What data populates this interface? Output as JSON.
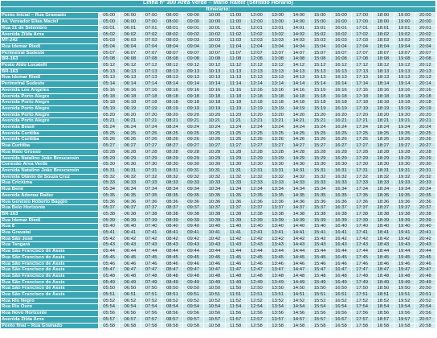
{
  "title": "Linha nº 300 Área Verde – Mário Raiter (Sentido Horário)",
  "subtitle": "Itinerário:",
  "rows": [
    {
      "stop": "Ponto Inicial – Rua Gramado",
      "times": [
        "05:00",
        "06:00",
        "07:00",
        "08:00",
        "09:00",
        "10:00",
        "11:00",
        "12:00",
        "13:00",
        "14:00",
        "15:00",
        "16:00",
        "17:00",
        "18:00",
        "19:00",
        "20:00"
      ]
    },
    {
      "stop": "Av. Vereador Elias Maciel",
      "times": [
        "05:00",
        "06:00",
        "07:00",
        "08:00",
        "09:00",
        "10:00",
        "11:00",
        "12:00",
        "13:00",
        "14:00",
        "15:00",
        "16:00",
        "17:00",
        "18:00",
        "19:00",
        "20:00"
      ]
    },
    {
      "stop": "Rua 21 de Setembro",
      "times": [
        "05:01",
        "06:01",
        "07:01",
        "08:01",
        "09:01",
        "10:01",
        "11:01",
        "12:01",
        "13:01",
        "14:01",
        "15:01",
        "16:01",
        "17:01",
        "18:01",
        "19:01",
        "20:01"
      ]
    },
    {
      "stop": "Avenida Zilda Arns",
      "times": [
        "05:02",
        "06:02",
        "07:02",
        "08:02",
        "09:02",
        "10:02",
        "11:02",
        "12:02",
        "13:02",
        "14:02",
        "15:02",
        "16:02",
        "17:02",
        "18:02",
        "19:02",
        "20:02"
      ]
    },
    {
      "stop": "MT-242",
      "times": [
        "05:03",
        "06:03",
        "07:03",
        "08:03",
        "09:03",
        "10:03",
        "11:03",
        "12:03",
        "13:03",
        "14:03",
        "15:03",
        "16:03",
        "17:03",
        "18:03",
        "19:03",
        "20:03"
      ]
    },
    {
      "stop": "Rua Idemar Riedi",
      "times": [
        "05:04",
        "06:04",
        "07:04",
        "08:04",
        "09:04",
        "10:04",
        "11:04",
        "12:04",
        "13:04",
        "14:04",
        "15:04",
        "16:04",
        "17:04",
        "18:04",
        "19:04",
        "20:04"
      ]
    },
    {
      "stop": "Perimetral Sudeste",
      "times": [
        "05:07",
        "06:07",
        "07:07",
        "08:07",
        "09:07",
        "10:07",
        "11:07",
        "12:07",
        "13:07",
        "14:07",
        "15:07",
        "16:07",
        "17:07",
        "18:07",
        "19:07",
        "20:07"
      ]
    },
    {
      "stop": "BR-163",
      "times": [
        "05:08",
        "06:08",
        "07:08",
        "08:08",
        "09:08",
        "10:08",
        "11:08",
        "12:08",
        "13:08",
        "14:08",
        "15:08",
        "16:08",
        "17:08",
        "18:08",
        "19:08",
        "20:08"
      ]
    },
    {
      "stop": "Posto Aldo Locatelli",
      "times": [
        "05:12",
        "06:12",
        "07:12",
        "08:12",
        "09:12",
        "10:12",
        "11:12",
        "12:12",
        "13:12",
        "14:12",
        "15:12",
        "16:12",
        "17:12",
        "18:12",
        "19:12",
        "20:12"
      ]
    },
    {
      "stop": "BR-163",
      "times": [
        "05:13",
        "06:13",
        "07:13",
        "08:13",
        "09:13",
        "10:13",
        "11:13",
        "12:13",
        "13:13",
        "14:13",
        "15:13",
        "16:13",
        "17:13",
        "18:13",
        "19:13",
        "20:13"
      ]
    },
    {
      "stop": "Rua Idemar Riedi",
      "times": [
        "05:13",
        "06:13",
        "07:13",
        "08:13",
        "09:13",
        "10:13",
        "11:13",
        "12:13",
        "13:13",
        "14:13",
        "15:13",
        "16:13",
        "17:13",
        "18:13",
        "19:13",
        "20:13"
      ]
    },
    {
      "stop": "Perimetral Sudeste",
      "times": [
        "05:14",
        "06:14",
        "07:14",
        "08:14",
        "09:14",
        "10:14",
        "11:14",
        "12:14",
        "13:14",
        "14:14",
        "15:14",
        "16:14",
        "17:14",
        "18:14",
        "19:14",
        "20:14"
      ]
    },
    {
      "stop": "Avenida Los Angeles",
      "times": [
        "05:16",
        "06:16",
        "07:16",
        "08:16",
        "09:16",
        "10:16",
        "11:16",
        "12:16",
        "13:16",
        "14:16",
        "15:16",
        "16:16",
        "17:16",
        "18:16",
        "19:16",
        "20:16"
      ]
    },
    {
      "stop": "Avenida Porto Alegre",
      "times": [
        "05:18",
        "06:18",
        "07:18",
        "08:18",
        "09:18",
        "10:18",
        "11:18",
        "12:18",
        "13:18",
        "14:18",
        "15:18",
        "16:18",
        "17:18",
        "18:18",
        "19:18",
        "20:18"
      ]
    },
    {
      "stop": "Avenida Porto Alegre",
      "times": [
        "05:18",
        "06:18",
        "07:18",
        "08:18",
        "09:18",
        "10:18",
        "11:18",
        "12:18",
        "13:18",
        "14:18",
        "15:18",
        "16:18",
        "17:18",
        "18:18",
        "19:18",
        "20:18"
      ]
    },
    {
      "stop": "Avenida Porto Alegre",
      "times": [
        "05:19",
        "06:19",
        "07:19",
        "08:19",
        "09:19",
        "10:19",
        "11:19",
        "12:19",
        "13:19",
        "14:19",
        "15:19",
        "16:19",
        "17:19",
        "18:19",
        "19:19",
        "20:19"
      ]
    },
    {
      "stop": "Avenida Porto Alegre",
      "times": [
        "05:20",
        "06:20",
        "07:20",
        "08:20",
        "09:20",
        "10:20",
        "11:20",
        "12:20",
        "13:20",
        "14:20",
        "15:20",
        "16:20",
        "17:20",
        "18:20",
        "19:20",
        "20:20"
      ]
    },
    {
      "stop": "Avenida Porto Alegre",
      "times": [
        "05:21",
        "06:21",
        "07:21",
        "08:21",
        "09:21",
        "10:21",
        "11:21",
        "12:21",
        "13:21",
        "14:21",
        "15:21",
        "16:21",
        "17:21",
        "18:21",
        "19:21",
        "20:21"
      ]
    },
    {
      "stop": "Avenida Brasil",
      "times": [
        "05:24",
        "06:24",
        "07:24",
        "08:24",
        "09:24",
        "10:24",
        "11:24",
        "12:24",
        "13:24",
        "14:24",
        "15:24",
        "16:24",
        "17:24",
        "18:24",
        "19:24",
        "20:24"
      ]
    },
    {
      "stop": "Avenida Curitiba",
      "times": [
        "05:25",
        "06:25",
        "07:25",
        "08:25",
        "09:25",
        "10:25",
        "11:25",
        "12:25",
        "13:25",
        "14:25",
        "15:25",
        "16:25",
        "17:25",
        "18:25",
        "19:25",
        "20:25"
      ]
    },
    {
      "stop": "Avenida Curitiba",
      "times": [
        "05:26",
        "06:26",
        "07:26",
        "08:26",
        "09:26",
        "10:26",
        "11:26",
        "12:26",
        "13:26",
        "14:26",
        "15:26",
        "16:26",
        "17:26",
        "18:26",
        "19:26",
        "20:26"
      ]
    },
    {
      "stop": "Rua Curitiba",
      "times": [
        "05:27",
        "06:27",
        "07:27",
        "08:27",
        "09:27",
        "10:27",
        "11:27",
        "12:27",
        "13:27",
        "14:27",
        "15:27",
        "16:27",
        "17:27",
        "18:27",
        "19:27",
        "20:27"
      ]
    },
    {
      "stop": "Rua Mato Grosso",
      "times": [
        "05:28",
        "06:28",
        "07:28",
        "08:28",
        "09:28",
        "10:28",
        "11:28",
        "12:28",
        "13:28",
        "14:28",
        "15:28",
        "16:28",
        "17:28",
        "18:28",
        "19:28",
        "20:28"
      ]
    },
    {
      "stop": "Avenida Natalino João Brescansin",
      "times": [
        "05:29",
        "06:29",
        "07:29",
        "08:29",
        "09:29",
        "10:29",
        "11:29",
        "12:29",
        "13:29",
        "14:29",
        "15:29",
        "16:29",
        "17:29",
        "18:29",
        "19:29",
        "20:29"
      ]
    },
    {
      "stop": "Conexão Área Verde",
      "times": [
        "05:30",
        "06:30",
        "07:30",
        "08:30",
        "09:30",
        "10:30",
        "11:30",
        "12:30",
        "13:30",
        "14:30",
        "15:30",
        "16:30",
        "17:30",
        "18:30",
        "19:30",
        "20:30"
      ]
    },
    {
      "stop": "Avenida Natalino João Brescansin",
      "times": [
        "05:31",
        "06:31",
        "07:31",
        "08:31",
        "09:31",
        "10:31",
        "11:31",
        "12:31",
        "13:31",
        "14:31",
        "15:31",
        "16:31",
        "17:31",
        "18:31",
        "19:31",
        "20:31"
      ]
    },
    {
      "stop": "Avenida Otávio de Souza Cruz",
      "times": [
        "05:32",
        "06:32",
        "07:32",
        "08:32",
        "09:32",
        "10:32",
        "11:32",
        "12:32",
        "13:32",
        "14:32",
        "15:32",
        "16:32",
        "17:32",
        "18:32",
        "19:32",
        "20:32"
      ]
    },
    {
      "stop": "Rua Criciúma",
      "times": [
        "05:33",
        "06:33",
        "07:33",
        "08:33",
        "09:33",
        "10:33",
        "11:33",
        "12:33",
        "13:33",
        "14:33",
        "15:33",
        "16:33",
        "17:33",
        "18:33",
        "19:33",
        "20:33"
      ]
    },
    {
      "stop": "Rua Bené",
      "times": [
        "05:34",
        "06:34",
        "07:34",
        "08:34",
        "09:34",
        "10:34",
        "11:34",
        "12:34",
        "13:34",
        "14:34",
        "15:34",
        "16:34",
        "17:34",
        "18:34",
        "19:34",
        "20:34"
      ]
    },
    {
      "stop": "Avenida Ademar Raiter",
      "times": [
        "05:35",
        "06:35",
        "07:35",
        "08:35",
        "09:35",
        "10:35",
        "11:35",
        "12:35",
        "13:35",
        "14:35",
        "15:35",
        "16:35",
        "17:35",
        "18:35",
        "19:35",
        "20:35"
      ]
    },
    {
      "stop": "Rua Genésio Roberto Baggio",
      "times": [
        "05:36",
        "06:36",
        "07:36",
        "08:36",
        "09:36",
        "10:36",
        "11:36",
        "12:36",
        "13:36",
        "14:36",
        "15:36",
        "16:36",
        "17:36",
        "18:36",
        "19:36",
        "20:36"
      ]
    },
    {
      "stop": "Rua Belo Horizonte",
      "times": [
        "05:37",
        "06:37",
        "07:37",
        "08:37",
        "09:37",
        "10:37",
        "11:37",
        "12:37",
        "13:37",
        "14:37",
        "15:37",
        "16:37",
        "17:37",
        "18:37",
        "19:37",
        "20:37"
      ]
    },
    {
      "stop": "BR-163",
      "times": [
        "05:38",
        "06:38",
        "07:38",
        "08:38",
        "09:38",
        "10:38",
        "11:38",
        "12:38",
        "13:38",
        "14:38",
        "15:38",
        "16:38",
        "17:38",
        "18:38",
        "19:38",
        "20:38"
      ]
    },
    {
      "stop": "Rua Idemar Riedi",
      "times": [
        "05:39",
        "06:39",
        "07:39",
        "08:39",
        "09:39",
        "10:39",
        "11:39",
        "12:39",
        "13:39",
        "14:39",
        "15:39",
        "16:39",
        "17:39",
        "18:39",
        "19:39",
        "20:39"
      ]
    },
    {
      "stop": "Rua 8",
      "times": [
        "05:40",
        "06:40",
        "07:40",
        "08:40",
        "09:40",
        "10:40",
        "11:40",
        "12:40",
        "13:40",
        "14:40",
        "15:40",
        "16:40",
        "17:40",
        "18:40",
        "19:40",
        "20:40"
      ]
    },
    {
      "stop": "Rua Gravataí",
      "times": [
        "05:41",
        "06:41",
        "07:41",
        "08:41",
        "09:41",
        "10:41",
        "11:41",
        "12:41",
        "13:41",
        "14:41",
        "15:41",
        "16:41",
        "17:41",
        "18:41",
        "19:41",
        "20:41"
      ]
    },
    {
      "stop": "Rua São José",
      "times": [
        "05:42",
        "06:42",
        "07:42",
        "08:42",
        "09:42",
        "10:42",
        "11:42",
        "12:42",
        "13:42",
        "14:42",
        "15:42",
        "16:42",
        "17:42",
        "18:42",
        "19:42",
        "20:42"
      ]
    },
    {
      "stop": "Rua Tangará",
      "times": [
        "05:43",
        "06:43",
        "07:43",
        "08:43",
        "09:43",
        "10:43",
        "11:43",
        "12:43",
        "13:43",
        "14:43",
        "15:43",
        "16:43",
        "17:43",
        "18:43",
        "19:43",
        "20:43"
      ]
    },
    {
      "stop": "Rua São Francisco de Assis",
      "times": [
        "05:44",
        "06:44",
        "07:44",
        "08:44",
        "09:44",
        "10:44",
        "11:44",
        "12:44",
        "13:44",
        "14:44",
        "15:44",
        "16:44",
        "17:44",
        "18:44",
        "19:44",
        "20:44"
      ]
    },
    {
      "stop": "Rua São Francisco de Assis",
      "times": [
        "05:45",
        "06:45",
        "07:45",
        "08:45",
        "09:45",
        "10:45",
        "11:45",
        "12:45",
        "13:45",
        "14:45",
        "15:45",
        "16:45",
        "17:45",
        "18:45",
        "19:45",
        "20:45"
      ]
    },
    {
      "stop": "Rua São Francisco de Assis",
      "times": [
        "05:46",
        "06:46",
        "07:46",
        "08:46",
        "09:46",
        "10:46",
        "11:46",
        "12:46",
        "13:46",
        "14:46",
        "15:46",
        "16:46",
        "17:46",
        "18:46",
        "19:46",
        "20:46"
      ]
    },
    {
      "stop": "Rua São Francisco de Assis",
      "times": [
        "05:47",
        "06:47",
        "07:47",
        "08:47",
        "09:47",
        "10:47",
        "11:47",
        "12:47",
        "13:47",
        "14:47",
        "15:47",
        "16:47",
        "17:47",
        "18:47",
        "19:47",
        "20:47"
      ]
    },
    {
      "stop": "Rua São Francisco de Assis",
      "times": [
        "05:48",
        "06:48",
        "07:48",
        "08:48",
        "09:48",
        "10:48",
        "11:48",
        "12:48",
        "13:48",
        "14:48",
        "15:48",
        "16:48",
        "17:48",
        "18:48",
        "19:48",
        "20:48"
      ]
    },
    {
      "stop": "Rua São Francisco de Assis",
      "times": [
        "05:49",
        "06:49",
        "07:49",
        "08:49",
        "09:49",
        "10:49",
        "11:49",
        "12:49",
        "13:49",
        "14:49",
        "15:49",
        "16:49",
        "17:49",
        "18:49",
        "19:49",
        "20:49"
      ]
    },
    {
      "stop": "Rua São Francisco de Assis",
      "times": [
        "05:50",
        "06:50",
        "07:50",
        "08:50",
        "09:50",
        "10:50",
        "11:50",
        "12:50",
        "13:50",
        "14:50",
        "15:50",
        "16:50",
        "17:50",
        "18:50",
        "19:50",
        "20:50"
      ]
    },
    {
      "stop": "Rua São Francisco de Assis",
      "times": [
        "05:51",
        "06:51",
        "07:51",
        "08:51",
        "09:51",
        "10:51",
        "11:51",
        "12:51",
        "13:51",
        "14:51",
        "15:51",
        "16:51",
        "17:51",
        "18:51",
        "19:51",
        "20:51"
      ]
    },
    {
      "stop": "Rua Rio Negro",
      "times": [
        "05:52",
        "06:52",
        "07:52",
        "08:52",
        "09:52",
        "10:52",
        "11:52",
        "12:52",
        "13:52",
        "14:52",
        "15:52",
        "16:52",
        "17:52",
        "18:52",
        "19:52",
        "20:52"
      ]
    },
    {
      "stop": "Rua Rio Ouro",
      "times": [
        "05:54",
        "06:54",
        "07:54",
        "08:54",
        "09:54",
        "10:54",
        "11:54",
        "12:54",
        "13:54",
        "14:54",
        "15:54",
        "16:54",
        "17:54",
        "18:54",
        "19:54",
        "20:54"
      ]
    },
    {
      "stop": "Rua Novo Horizonte",
      "times": [
        "05:56",
        "06:56",
        "07:56",
        "08:56",
        "09:56",
        "10:56",
        "11:56",
        "12:56",
        "13:56",
        "14:56",
        "15:56",
        "16:56",
        "17:56",
        "18:56",
        "19:56",
        "20:56"
      ]
    },
    {
      "stop": "Avenida Zilda Arns",
      "times": [
        "05:57",
        "06:57",
        "07:57",
        "08:57",
        "09:57",
        "10:57",
        "11:57",
        "12:57",
        "13:57",
        "14:57",
        "15:57",
        "16:57",
        "17:57",
        "18:57",
        "19:57",
        "20:57"
      ]
    },
    {
      "stop": "Ponto final – Rua Gramado",
      "times": [
        "05:58",
        "06:58",
        "07:58",
        "08:58",
        "09:58",
        "10:58",
        "11:58",
        "12:58",
        "13:58",
        "14:58",
        "15:58",
        "16:58",
        "17:58",
        "18:58",
        "19:58",
        "20:58"
      ]
    }
  ]
}
